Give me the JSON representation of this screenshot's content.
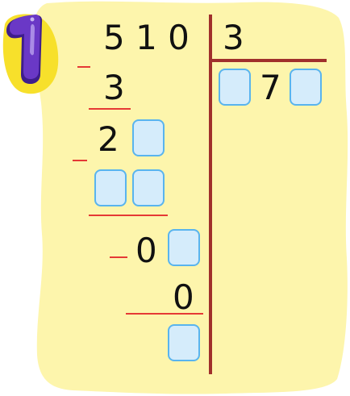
{
  "problem": {
    "number": "1",
    "dividend": "5 1 0",
    "divisor": "3",
    "quotient_digit": "7",
    "steps": {
      "subtract1": "3",
      "remainder1": "2",
      "remainder2": "0",
      "subtract3": "0"
    }
  },
  "colors": {
    "paper": "#fdf5ac",
    "division_lines": "#a0302c",
    "minus_signs": "#e53935",
    "answer_box_fill": "#d5ecfb",
    "answer_box_border": "#59b4ee",
    "badge_purple": "#5b2fb0"
  }
}
